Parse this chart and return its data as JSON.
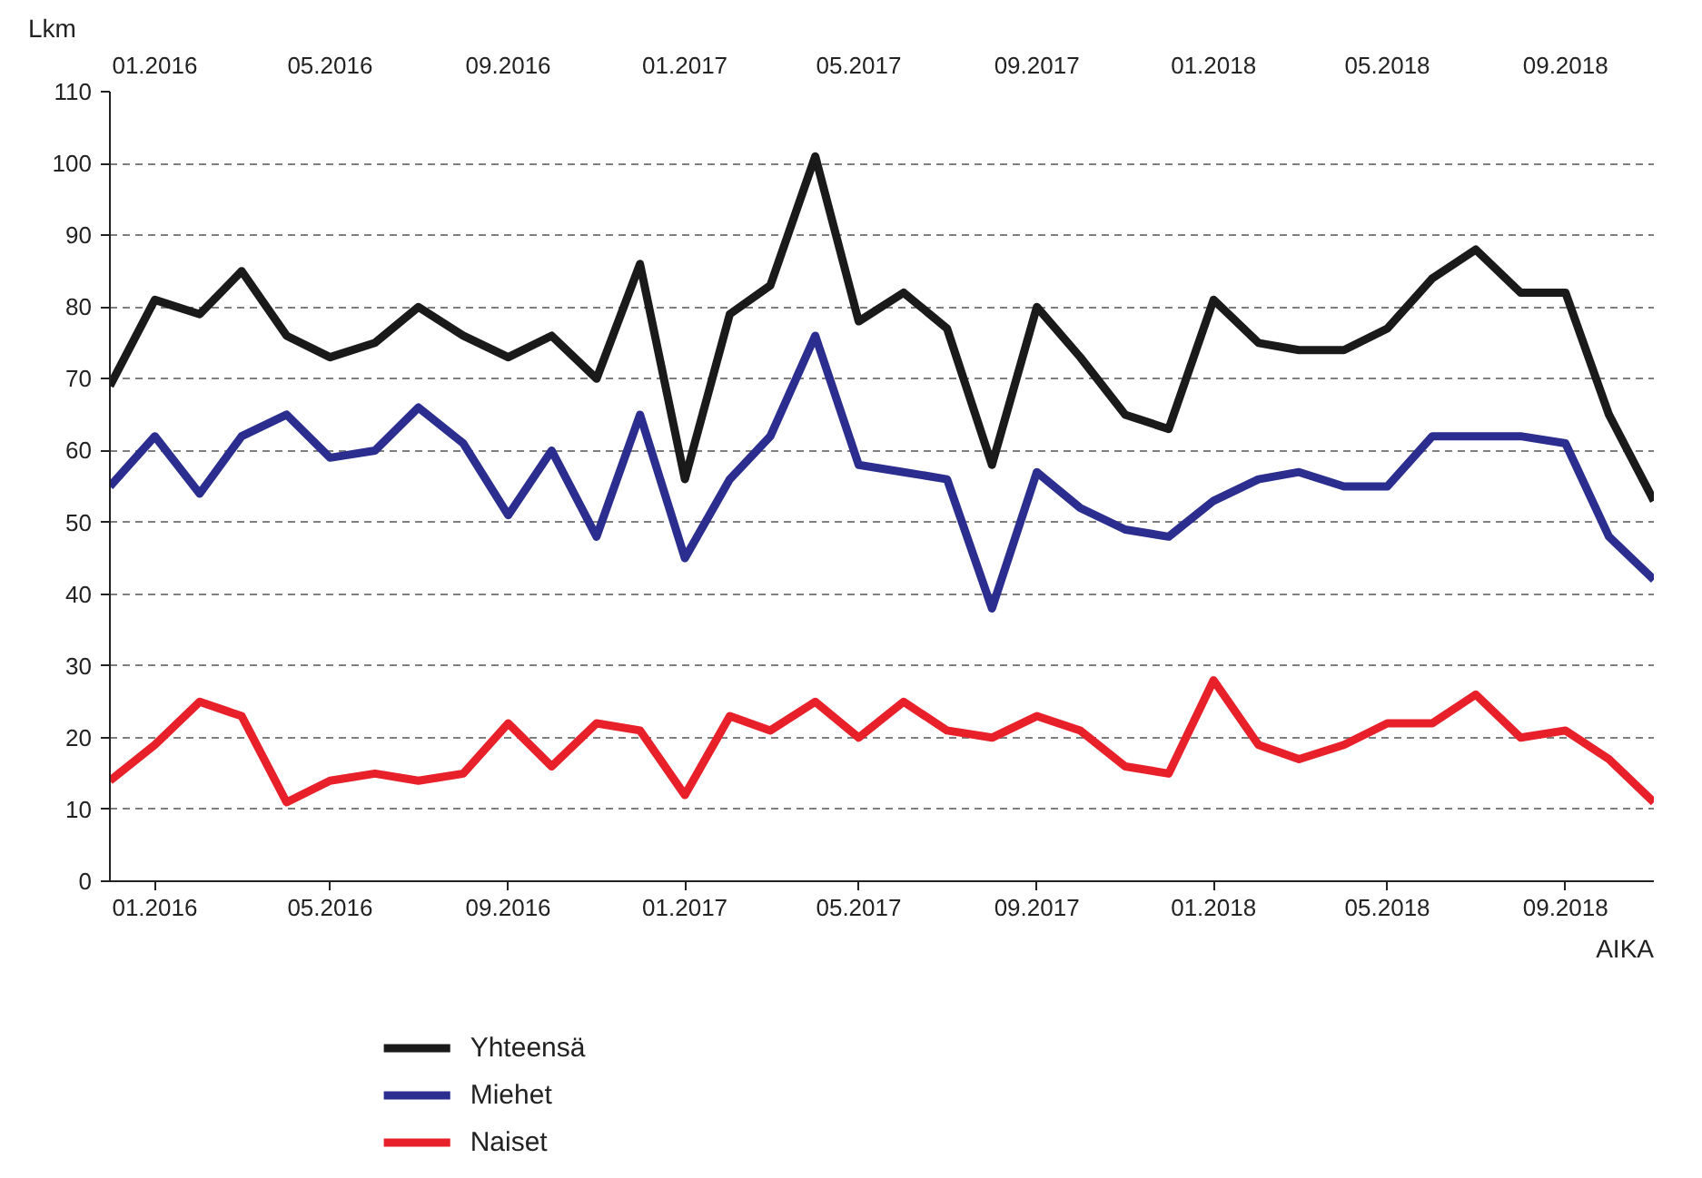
{
  "chart_data": {
    "type": "line",
    "ylabel": "Lkm",
    "xlabel": "AIKA",
    "x": [
      "2015-12",
      "2016-01",
      "2016-02",
      "2016-03",
      "2016-04",
      "2016-05",
      "2016-06",
      "2016-07",
      "2016-08",
      "2016-09",
      "2016-10",
      "2016-11",
      "2016-12",
      "2017-01",
      "2017-02",
      "2017-03",
      "2017-04",
      "2017-05",
      "2017-06",
      "2017-07",
      "2017-08",
      "2017-09",
      "2017-10",
      "2017-11",
      "2017-12",
      "2018-01",
      "2018-02",
      "2018-03",
      "2018-04",
      "2018-05",
      "2018-06",
      "2018-07",
      "2018-08",
      "2018-09",
      "2018-10",
      "2018-11"
    ],
    "series": [
      {
        "name": "Yhteensä",
        "color": "#1a1a1a",
        "values": [
          69,
          81,
          79,
          85,
          76,
          73,
          75,
          80,
          76,
          73,
          76,
          70,
          86,
          56,
          79,
          83,
          101,
          78,
          82,
          77,
          58,
          80,
          73,
          65,
          63,
          81,
          75,
          74,
          74,
          77,
          84,
          88,
          82,
          82,
          65,
          53
        ]
      },
      {
        "name": "Miehet",
        "color": "#2b2d8f",
        "values": [
          55,
          62,
          54,
          62,
          65,
          59,
          60,
          66,
          61,
          51,
          60,
          48,
          65,
          45,
          56,
          62,
          76,
          58,
          57,
          56,
          38,
          57,
          52,
          49,
          48,
          53,
          56,
          57,
          55,
          55,
          62,
          62,
          62,
          61,
          48,
          42
        ]
      },
      {
        "name": "Naiset",
        "color": "#e8202a",
        "values": [
          14,
          19,
          25,
          23,
          11,
          14,
          15,
          14,
          15,
          22,
          16,
          22,
          21,
          12,
          23,
          21,
          25,
          20,
          25,
          21,
          20,
          23,
          21,
          16,
          15,
          28,
          19,
          17,
          19,
          22,
          22,
          26,
          20,
          21,
          17,
          11
        ]
      }
    ],
    "xlim": [
      "2015-12",
      "2018-11"
    ],
    "xticks": [
      {
        "value": "2016-01",
        "label": "01.2016"
      },
      {
        "value": "2016-05",
        "label": "05.2016"
      },
      {
        "value": "2016-09",
        "label": "09.2016"
      },
      {
        "value": "2017-01",
        "label": "01.2017"
      },
      {
        "value": "2017-05",
        "label": "05.2017"
      },
      {
        "value": "2017-09",
        "label": "09.2017"
      },
      {
        "value": "2018-01",
        "label": "01.2018"
      },
      {
        "value": "2018-05",
        "label": "05.2018"
      },
      {
        "value": "2018-09",
        "label": "09.2018"
      }
    ],
    "x2lim": [
      "2015-12",
      "2018-11"
    ],
    "x2ticks": [
      {
        "value": "2016-01",
        "label": "01.2016"
      },
      {
        "value": "2016-05",
        "label": "05.2016"
      },
      {
        "value": "2016-09",
        "label": "09.2016"
      },
      {
        "value": "2017-01",
        "label": "01.2017"
      },
      {
        "value": "2017-05",
        "label": "05.2017"
      },
      {
        "value": "2017-09",
        "label": "09.2017"
      },
      {
        "value": "2018-01",
        "label": "01.2018"
      },
      {
        "value": "2018-05",
        "label": "05.2018"
      },
      {
        "value": "2018-09",
        "label": "09.2018"
      }
    ],
    "ylim": [
      0,
      110
    ],
    "yticks": [
      0,
      10,
      20,
      30,
      40,
      50,
      60,
      70,
      80,
      90,
      100,
      110
    ],
    "grid": "y",
    "legend": "bottom left",
    "line_style": "solid",
    "marker": "none"
  }
}
